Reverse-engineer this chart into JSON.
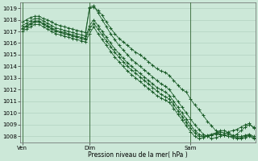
{
  "title": "Pression niveau de la mer( hPa )",
  "ylim": [
    1007.5,
    1019.5
  ],
  "yticks": [
    1008,
    1009,
    1010,
    1011,
    1012,
    1013,
    1014,
    1015,
    1016,
    1017,
    1018,
    1019
  ],
  "xtick_labels": [
    "Ven",
    "Dim",
    "Sam"
  ],
  "xtick_positions": [
    0,
    16,
    40
  ],
  "total_points": 56,
  "bg_color": "#cce8d8",
  "grid_color": "#aaccbb",
  "line_color": "#1a5c28",
  "series": [
    [
      1017.8,
      1018.0,
      1018.2,
      1018.3,
      1018.3,
      1018.1,
      1018.0,
      1017.8,
      1017.6,
      1017.5,
      1017.4,
      1017.3,
      1017.2,
      1017.1,
      1017.0,
      1016.9,
      1019.0,
      1019.1,
      1018.8,
      1018.4,
      1017.8,
      1017.3,
      1016.8,
      1016.4,
      1016.1,
      1015.8,
      1015.5,
      1015.2,
      1015.0,
      1014.7,
      1014.4,
      1014.1,
      1013.8,
      1013.6,
      1013.5,
      1013.2,
      1012.8,
      1012.4,
      1012.0,
      1011.8,
      1011.2,
      1010.7,
      1010.3,
      1009.8,
      1009.3,
      1008.9,
      1008.5,
      1008.2,
      1008.1,
      1008.0,
      1008.0,
      1008.2,
      1008.5,
      1008.8,
      1009.0,
      1008.8
    ],
    [
      1017.5,
      1017.7,
      1017.9,
      1018.1,
      1018.1,
      1017.9,
      1017.7,
      1017.5,
      1017.3,
      1017.2,
      1017.1,
      1017.0,
      1016.9,
      1016.8,
      1016.7,
      1016.6,
      1019.1,
      1019.2,
      1018.6,
      1018.0,
      1017.4,
      1016.8,
      1016.3,
      1015.8,
      1015.4,
      1015.0,
      1014.6,
      1014.3,
      1014.0,
      1013.7,
      1013.4,
      1013.1,
      1012.8,
      1012.5,
      1012.3,
      1012.0,
      1011.5,
      1011.0,
      1010.5,
      1010.0,
      1009.5,
      1009.0,
      1008.6,
      1008.2,
      1008.0,
      1007.8,
      1007.9,
      1008.0,
      1008.2,
      1008.4,
      1008.5,
      1008.6,
      1008.8,
      1009.0,
      1009.1,
      1008.7
    ],
    [
      1017.3,
      1017.5,
      1017.7,
      1017.9,
      1017.9,
      1017.7,
      1017.5,
      1017.3,
      1017.1,
      1017.0,
      1016.9,
      1016.8,
      1016.7,
      1016.6,
      1016.5,
      1016.4,
      1017.5,
      1018.0,
      1017.5,
      1017.0,
      1016.5,
      1016.0,
      1015.5,
      1015.1,
      1014.7,
      1014.3,
      1014.0,
      1013.7,
      1013.4,
      1013.1,
      1012.8,
      1012.5,
      1012.2,
      1012.0,
      1011.8,
      1011.5,
      1011.0,
      1010.5,
      1010.0,
      1009.5,
      1009.0,
      1008.5,
      1008.2,
      1008.0,
      1008.0,
      1008.1,
      1008.3,
      1008.5,
      1008.5,
      1008.3,
      1008.1,
      1008.0,
      1008.0,
      1008.1,
      1008.2,
      1008.0
    ],
    [
      1017.2,
      1017.4,
      1017.6,
      1017.8,
      1017.8,
      1017.6,
      1017.4,
      1017.2,
      1017.0,
      1016.9,
      1016.8,
      1016.7,
      1016.6,
      1016.5,
      1016.4,
      1016.3,
      1017.2,
      1017.7,
      1017.2,
      1016.7,
      1016.2,
      1015.7,
      1015.2,
      1014.8,
      1014.4,
      1014.0,
      1013.7,
      1013.4,
      1013.1,
      1012.8,
      1012.5,
      1012.2,
      1011.9,
      1011.6,
      1011.4,
      1011.2,
      1010.7,
      1010.2,
      1009.7,
      1009.2,
      1008.7,
      1008.3,
      1008.0,
      1008.0,
      1008.1,
      1008.2,
      1008.3,
      1008.4,
      1008.3,
      1008.2,
      1008.0,
      1007.9,
      1007.9,
      1008.0,
      1008.1,
      1007.9
    ],
    [
      1017.0,
      1017.2,
      1017.4,
      1017.6,
      1017.6,
      1017.4,
      1017.2,
      1017.0,
      1016.8,
      1016.7,
      1016.6,
      1016.5,
      1016.4,
      1016.3,
      1016.2,
      1016.1,
      1016.8,
      1017.4,
      1016.8,
      1016.3,
      1015.8,
      1015.3,
      1014.8,
      1014.4,
      1014.0,
      1013.6,
      1013.3,
      1013.0,
      1012.7,
      1012.4,
      1012.1,
      1011.8,
      1011.5,
      1011.3,
      1011.1,
      1010.9,
      1010.4,
      1009.9,
      1009.4,
      1008.9,
      1008.4,
      1008.0,
      1007.8,
      1007.9,
      1008.0,
      1008.1,
      1008.2,
      1008.2,
      1008.1,
      1008.0,
      1007.9,
      1007.8,
      1007.8,
      1007.9,
      1008.0,
      1007.8
    ]
  ]
}
